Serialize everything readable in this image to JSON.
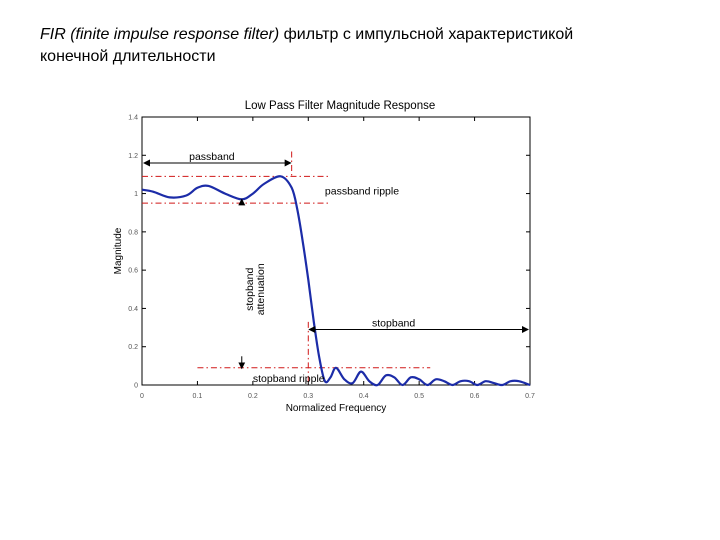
{
  "slide": {
    "title_line1_italic": "FIR (finite impulse response filter)",
    "title_line1_rest": " фильтр с импульсной характеристикой",
    "title_line2": "конечной длительности"
  },
  "chart_data": {
    "type": "line",
    "title": "Low Pass Filter Magnitude Response",
    "xlabel": "Normalized Frequency",
    "ylabel": "Magnitude",
    "xlim": [
      0,
      0.7
    ],
    "ylim": [
      0,
      1.4
    ],
    "xticks": [
      0,
      0.1,
      0.2,
      0.3,
      0.4,
      0.5,
      0.6,
      0.7
    ],
    "xtick_labels": [
      "0",
      "0.1",
      "0.2",
      "0.3",
      "0.4",
      "0.5",
      "0.6",
      "0.7"
    ],
    "yticks": [
      0,
      0.2,
      0.4,
      0.6,
      0.8,
      1,
      1.2,
      1.4
    ],
    "ytick_labels": [
      "0",
      "0.2",
      "0.4",
      "0.6",
      "0.8",
      "1",
      "1.2",
      "1.4"
    ],
    "grid": false,
    "line_color": "#1c2ca8",
    "guide_color": "#d01818",
    "series": [
      {
        "x": [
          0,
          0.02,
          0.05,
          0.08,
          0.1,
          0.12,
          0.15,
          0.18,
          0.2,
          0.22,
          0.25,
          0.27,
          0.28,
          0.29,
          0.3,
          0.31,
          0.32,
          0.33,
          0.34,
          0.35,
          0.365,
          0.38,
          0.395,
          0.41,
          0.425,
          0.44,
          0.455,
          0.47,
          0.485,
          0.5,
          0.515,
          0.53,
          0.545,
          0.56,
          0.575,
          0.59,
          0.605,
          0.62,
          0.635,
          0.65,
          0.665,
          0.68,
          0.7
        ],
        "y": [
          1.02,
          1.01,
          0.98,
          0.99,
          1.03,
          1.04,
          1.0,
          0.97,
          1.0,
          1.05,
          1.09,
          1.03,
          0.92,
          0.75,
          0.55,
          0.33,
          0.14,
          0.02,
          0.04,
          0.09,
          0.03,
          0.01,
          0.07,
          0.02,
          0.0,
          0.05,
          0.04,
          0.0,
          0.04,
          0.03,
          0.0,
          0.03,
          0.02,
          0.0,
          0.02,
          0.02,
          0.0,
          0.02,
          0.01,
          0.0,
          0.02,
          0.02,
          0.0
        ]
      }
    ],
    "guides": {
      "passband_edge": 0.27,
      "stopband_edge": 0.3,
      "passband_ripple_upper": 1.09,
      "passband_ripple_lower": 0.95,
      "stopband_ripple_level": 0.09,
      "passband_label_y": 1.16,
      "stopband_label_y": 0.29,
      "stopband_ripple_label_x": 0.2,
      "attenuation_label_x": 0.2,
      "attenuation_arrow_x": 0.18
    },
    "annotations": {
      "passband": "passband",
      "passband_ripple": "passband ripple",
      "stopband": "stopband",
      "stopband_ripple": "stopband ripple",
      "stopband_attenuation_line1": "stopband",
      "stopband_attenuation_line2": "attenuation"
    }
  }
}
